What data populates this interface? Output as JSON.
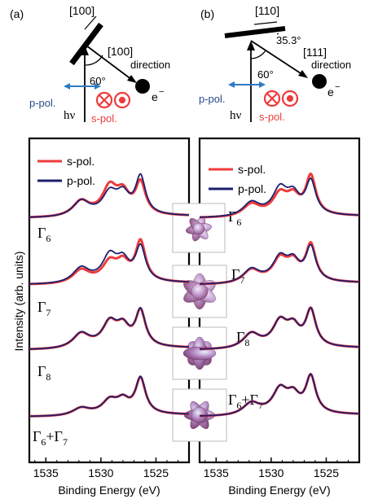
{
  "colors": {
    "s_pol": "#ee3b3b",
    "p_pol": "#1c1f6e",
    "arrow_blue": "#2b7bc4",
    "frame": "#000000"
  },
  "schematics": [
    {
      "panel_label": "(a)",
      "axis_top": "[100]",
      "axis_emission": "[100]",
      "direction_word": "direction",
      "angle": "60°",
      "electron": "e",
      "electron_sup": "−",
      "photon": "hν",
      "p_pol": "p-pol.",
      "s_pol": "s-pol."
    },
    {
      "panel_label": "(b)",
      "axis_top": "[110]",
      "axis_emission": "[111]",
      "direction_word": "direction",
      "angle": "60°",
      "tilt_angle": "35.3°",
      "electron": "e",
      "electron_sup": "−",
      "photon": "hν",
      "p_pol": "p-pol.",
      "s_pol": "s-pol."
    }
  ],
  "chart_data": [
    {
      "type": "line",
      "panel": "left",
      "xlabel": "Binding Energy (eV)",
      "ylabel": "Intensity (arb. units)",
      "xlim": [
        1536.5,
        1522
      ],
      "x_ticks": [
        1535,
        1530,
        1525
      ],
      "legend": [
        "s-pol.",
        "p-pol."
      ],
      "legend_position": "top-left",
      "series_names": [
        "s-pol.",
        "p-pol."
      ],
      "spectra": [
        {
          "label_base": "Γ",
          "label_sub": "6",
          "s_amp": [
            0.44,
            0.83,
            0.6,
            0.97
          ],
          "p_amp": [
            0.45,
            0.65,
            0.57,
            1.16
          ]
        },
        {
          "label_base": "Γ",
          "label_sub": "7",
          "s_amp": [
            0.38,
            0.57,
            0.52,
            1.22
          ],
          "p_amp": [
            0.44,
            0.77,
            0.57,
            1.05
          ]
        },
        {
          "label_base": "Γ",
          "label_sub": "8",
          "s_amp": [
            0.42,
            0.71,
            0.55,
            1.08
          ],
          "p_amp": [
            0.43,
            0.72,
            0.55,
            1.1
          ]
        },
        {
          "label_base": "Γ",
          "label_sub": "6",
          "label_suffix_base": "+Γ",
          "label_suffix_sub": "7",
          "s_amp": [
            0.2,
            0.4,
            0.38,
            1.08
          ],
          "p_amp": [
            0.2,
            0.4,
            0.38,
            1.1
          ]
        }
      ]
    },
    {
      "type": "line",
      "panel": "right",
      "xlabel": "Binding Energy (eV)",
      "xlim": [
        1536.5,
        1522
      ],
      "x_ticks": [
        1535,
        1530,
        1525
      ],
      "legend": [
        "s-pol.",
        "p-pol."
      ],
      "legend_position": "top-left",
      "series_names": [
        "s-pol.",
        "p-pol."
      ],
      "spectra": [
        {
          "s_amp": [
            0.35,
            0.62,
            0.5,
            1.18
          ],
          "p_amp": [
            0.4,
            0.78,
            0.55,
            1.02
          ]
        },
        {
          "s_amp": [
            0.38,
            0.66,
            0.52,
            1.12
          ],
          "p_amp": [
            0.4,
            0.71,
            0.55,
            1.04
          ]
        },
        {
          "s_amp": [
            0.42,
            0.74,
            0.55,
            1.1
          ],
          "p_amp": [
            0.42,
            0.74,
            0.55,
            1.1
          ]
        },
        {
          "s_amp": [
            0.34,
            0.72,
            0.5,
            1.12
          ],
          "p_amp": [
            0.34,
            0.72,
            0.5,
            1.12
          ]
        }
      ]
    }
  ],
  "inset_labels": [
    {
      "base": "Γ",
      "sub": "6"
    },
    {
      "base": "Γ",
      "sub": "7"
    },
    {
      "base": "Γ",
      "sub": "8"
    },
    {
      "base": "Γ",
      "sub": "6",
      "suffix_base": "+Γ",
      "suffix_sub": "7"
    }
  ]
}
